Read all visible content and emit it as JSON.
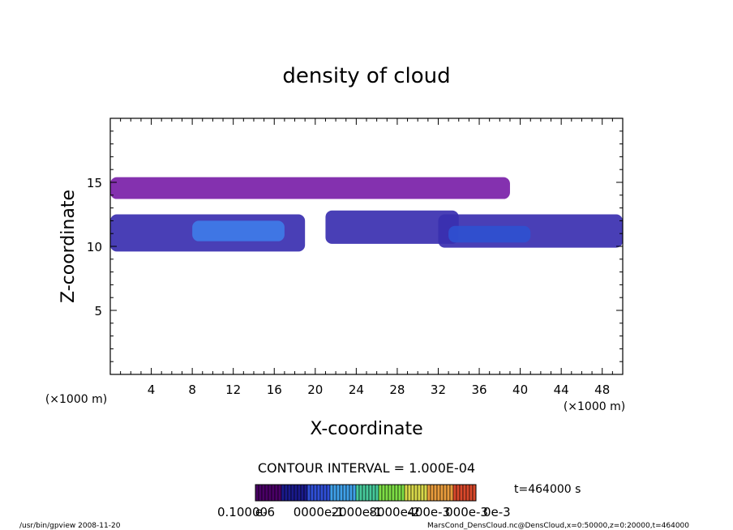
{
  "chart_data": {
    "type": "heatmap",
    "title": "density of cloud",
    "xlabel": "X-coordinate",
    "ylabel": "Z-coordinate",
    "x_unit_left": "(×1000 m)",
    "x_unit_right": "(×1000 m)",
    "xlim": [
      0,
      50
    ],
    "ylim": [
      0,
      20
    ],
    "x_ticks": [
      "4",
      "8",
      "12",
      "16",
      "20",
      "24",
      "28",
      "32",
      "36",
      "40",
      "44",
      "48"
    ],
    "y_ticks": [
      "5",
      "10",
      "15"
    ],
    "contour_interval": "CONTOUR INTERVAL = 1.000E-04",
    "time_label": "t=464000 s",
    "colorbar_labels": [
      "0.10000",
      "e-6",
      "0000e-1",
      "2000e-1",
      "8000e-2",
      "400e-3",
      "000e-3",
      "0e-3"
    ],
    "colorbar_colors": [
      "#4a0066",
      "#1a1a8c",
      "#2f4fd6",
      "#3fa0e8",
      "#46c99a",
      "#7ddd45",
      "#d8d84a",
      "#e89b3c",
      "#d9482b"
    ],
    "regions": [
      {
        "name": "upper band",
        "x": [
          0,
          39
        ],
        "z": [
          13.7,
          15.4
        ],
        "level": 0.0001
      },
      {
        "name": "lower band left",
        "x": [
          0,
          19
        ],
        "z": [
          9.6,
          12.5
        ],
        "level": 0.0002
      },
      {
        "name": "left core",
        "x": [
          8,
          17
        ],
        "z": [
          10.4,
          12.0
        ],
        "level": 0.0004
      },
      {
        "name": "lower band middle",
        "x": [
          21,
          34
        ],
        "z": [
          10.2,
          12.8
        ],
        "level": 0.0002
      },
      {
        "name": "lower band right",
        "x": [
          32,
          50
        ],
        "z": [
          9.9,
          12.5
        ],
        "level": 0.0002
      },
      {
        "name": "right core",
        "x": [
          33,
          41
        ],
        "z": [
          10.3,
          11.6
        ],
        "level": 0.0003
      }
    ]
  },
  "footer": {
    "left": "/usr/bin/gpview   2008-11-20",
    "right": "MarsCond_DensCloud.nc@DensCloud,x=0:50000,z=0:20000,t=464000"
  }
}
